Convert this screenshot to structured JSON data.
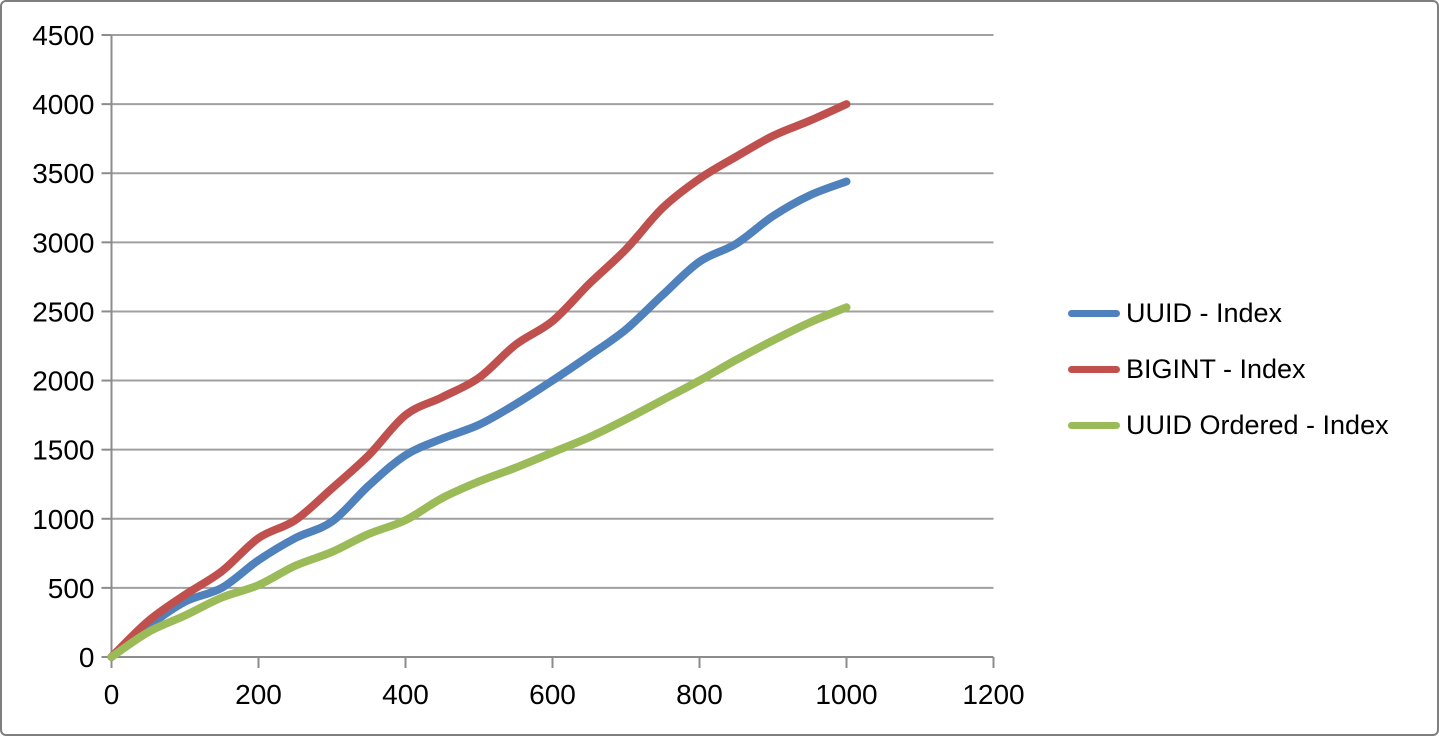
{
  "chart_data": {
    "type": "line",
    "x": [
      0,
      50,
      100,
      150,
      200,
      250,
      300,
      350,
      400,
      450,
      500,
      550,
      600,
      650,
      700,
      750,
      800,
      850,
      900,
      950,
      1000
    ],
    "series": [
      {
        "name": "UUID - Index",
        "color": "#4F81BD",
        "values": [
          0,
          220,
          400,
          500,
          700,
          860,
          980,
          1240,
          1460,
          1580,
          1680,
          1830,
          2000,
          2180,
          2370,
          2620,
          2860,
          2990,
          3190,
          3340,
          3440
        ]
      },
      {
        "name": "BIGINT - Index",
        "color": "#C0504D",
        "values": [
          0,
          260,
          450,
          620,
          860,
          990,
          1220,
          1460,
          1750,
          1880,
          2020,
          2260,
          2430,
          2700,
          2950,
          3250,
          3460,
          3620,
          3770,
          3880,
          4000
        ]
      },
      {
        "name": "UUID Ordered - Index",
        "color": "#9BBB59",
        "values": [
          0,
          180,
          300,
          430,
          520,
          660,
          760,
          890,
          990,
          1150,
          1270,
          1370,
          1480,
          1590,
          1720,
          1860,
          2000,
          2150,
          2290,
          2420,
          2530
        ]
      }
    ],
    "xlim": [
      0,
      1200
    ],
    "ylim": [
      0,
      4500
    ],
    "x_ticks": [
      0,
      200,
      400,
      600,
      800,
      1000,
      1200
    ],
    "y_ticks": [
      0,
      500,
      1000,
      1500,
      2000,
      2500,
      3000,
      3500,
      4000,
      4500
    ],
    "grid": true,
    "smooth_lines": true,
    "legend_position": "right"
  },
  "styles": {
    "background": "#FFFFFF",
    "border_color": "#7F7F7F",
    "axis_color": "#8C8C8C",
    "grid_color": "#A0A0A0",
    "text_color": "#000000"
  }
}
